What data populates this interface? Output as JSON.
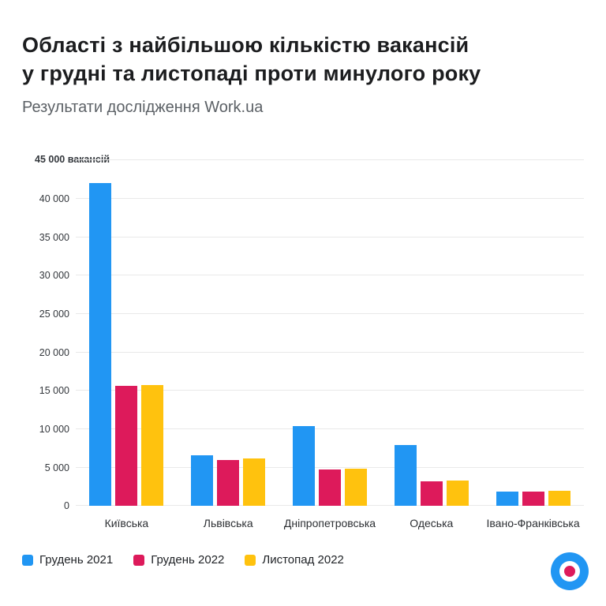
{
  "header": {
    "title": "Області з найбільшою кількістю вакансій\nу грудні та листопаді проти минулого року",
    "subtitle": "Результати дослідження Work.ua"
  },
  "chart_data": {
    "type": "bar",
    "title": "Області з найбільшою кількістю вакансій у грудні та листопаді проти минулого року",
    "subtitle": "Результати дослідження Work.ua",
    "categories": [
      "Київська",
      "Львівська",
      "Дніпропетровська",
      "Одеська",
      "Івано-Франківська"
    ],
    "series": [
      {
        "name": "Грудень 2021",
        "color": "#2196F3",
        "values": [
          42000,
          6600,
          10400,
          7900,
          1900
        ]
      },
      {
        "name": "Грудень 2022",
        "color": "#DD1A5B",
        "values": [
          15600,
          6000,
          4800,
          3200,
          1900
        ]
      },
      {
        "name": "Листопад 2022",
        "color": "#FFC20E",
        "values": [
          15700,
          6200,
          4900,
          3300,
          2000
        ]
      }
    ],
    "ylim": [
      0,
      45000
    ],
    "ytick_step": 5000,
    "ytick_labels": [
      "0",
      "5 000",
      "10 000",
      "15 000",
      "20 000",
      "25 000",
      "30 000",
      "35 000",
      "40 000"
    ],
    "top_axis_label": "45 000 вакансій",
    "grid": true,
    "legend_position": "bottom-left"
  },
  "colors": {
    "background": "#ffffff",
    "gridline": "#e9e9e9",
    "title_text": "#1c1d1f",
    "subtitle_text": "#5c6166",
    "axis_text": "#33373c",
    "logo_blue": "#2196F3",
    "logo_crimson": "#DD1A5B"
  },
  "footer": {
    "logo_icon": "work-ua-roundel"
  }
}
